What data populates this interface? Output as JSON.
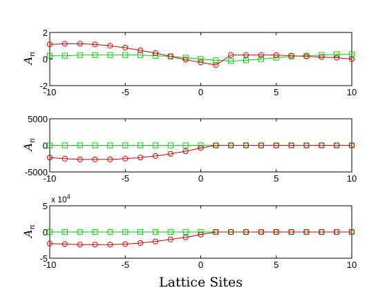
{
  "colors": {
    "series_a": "#cc0000",
    "series_b": "#00cc00",
    "axes": "#000000",
    "background": "#ffffff"
  },
  "chart_data": [
    {
      "type": "line",
      "ylabel_main": "A",
      "ylabel_sub": "n",
      "xlim": [
        -10,
        10
      ],
      "ylim": [
        -2,
        2
      ],
      "xticks": [
        "-10",
        "-5",
        "0",
        "5",
        "10"
      ],
      "yticks": [
        {
          "value": 2,
          "label": "2"
        },
        {
          "value": 0,
          "label": "0"
        },
        {
          "value": -2,
          "label": "-2"
        }
      ],
      "multiplier": "",
      "x": [
        -10,
        -9,
        -8,
        -7,
        -6,
        -5,
        -4,
        -3,
        -2,
        -1,
        0,
        1,
        2,
        3,
        4,
        5,
        6,
        7,
        8,
        9,
        10
      ],
      "series": [
        {
          "marker": "circle",
          "color": "#cc0000",
          "values": [
            1.1,
            1.15,
            1.15,
            1.1,
            1.0,
            0.85,
            0.65,
            0.45,
            0.2,
            -0.05,
            -0.25,
            -0.45,
            0.3,
            0.3,
            0.3,
            0.3,
            0.25,
            0.2,
            0.15,
            0.1,
            0.0
          ]
        },
        {
          "marker": "square",
          "color": "#00cc00",
          "values": [
            0.25,
            0.25,
            0.3,
            0.3,
            0.3,
            0.3,
            0.3,
            0.25,
            0.2,
            0.1,
            0.0,
            -0.1,
            -0.15,
            -0.1,
            0.0,
            0.1,
            0.2,
            0.25,
            0.3,
            0.35,
            0.35
          ]
        }
      ]
    },
    {
      "type": "line",
      "ylabel_main": "A",
      "ylabel_sub": "n",
      "xlim": [
        -10,
        10
      ],
      "ylim": [
        -5000,
        5000
      ],
      "xticks": [
        "-10",
        "-5",
        "0",
        "5",
        "10"
      ],
      "yticks": [
        {
          "value": 5000,
          "label": "5000"
        },
        {
          "value": 0,
          "label": "0"
        },
        {
          "value": -5000,
          "label": "-5000"
        }
      ],
      "multiplier": "",
      "x": [
        -10,
        -9,
        -8,
        -7,
        -6,
        -5,
        -4,
        -3,
        -2,
        -1,
        0,
        1,
        2,
        3,
        4,
        5,
        6,
        7,
        8,
        9,
        10
      ],
      "series": [
        {
          "marker": "circle",
          "color": "#cc0000",
          "values": [
            -2300,
            -2500,
            -2650,
            -2650,
            -2650,
            -2500,
            -2300,
            -2000,
            -1600,
            -1100,
            -500,
            0,
            0,
            0,
            0,
            0,
            0,
            0,
            0,
            0,
            0
          ]
        },
        {
          "marker": "square",
          "color": "#00cc00",
          "values": [
            0,
            0,
            0,
            0,
            0,
            0,
            0,
            0,
            0,
            0,
            0,
            0,
            0,
            0,
            0,
            0,
            0,
            0,
            0,
            0,
            0
          ]
        }
      ]
    },
    {
      "type": "line",
      "ylabel_main": "A",
      "ylabel_sub": "n",
      "xlabel": "Lattice Sites",
      "xlim": [
        -10,
        10
      ],
      "ylim": [
        -5,
        5
      ],
      "xticks": [
        "-10",
        "-5",
        "0",
        "5",
        "10"
      ],
      "yticks": [
        {
          "value": 5,
          "label": "5"
        },
        {
          "value": 0,
          "label": "0"
        },
        {
          "value": -5,
          "label": "-5"
        }
      ],
      "multiplier": "x 10",
      "multiplier_exp": "4",
      "x": [
        -10,
        -9,
        -8,
        -7,
        -6,
        -5,
        -4,
        -3,
        -2,
        -1,
        0,
        1,
        2,
        3,
        4,
        5,
        6,
        7,
        8,
        9,
        10
      ],
      "series": [
        {
          "marker": "circle",
          "color": "#cc0000",
          "values": [
            -2.2,
            -2.3,
            -2.4,
            -2.4,
            -2.4,
            -2.3,
            -2.1,
            -1.8,
            -1.4,
            -1.0,
            -0.5,
            0,
            0,
            0,
            0,
            0,
            0,
            0,
            0,
            0,
            0
          ]
        },
        {
          "marker": "square",
          "color": "#00cc00",
          "values": [
            0,
            0,
            0,
            0,
            0,
            0,
            0,
            0,
            0,
            0,
            0,
            0,
            0,
            0,
            0,
            0,
            0,
            0,
            0,
            0,
            0
          ]
        }
      ]
    }
  ]
}
